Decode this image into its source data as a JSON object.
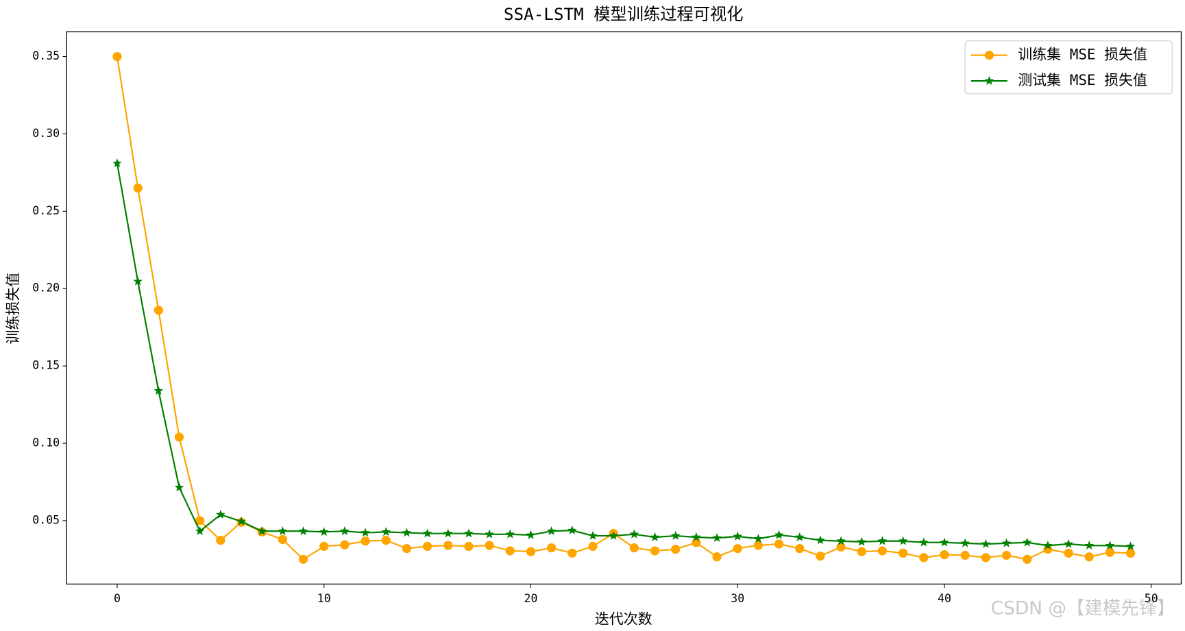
{
  "chart_data": {
    "type": "line",
    "title": "SSA-LSTM 模型训练过程可视化",
    "x_label": "迭代次数",
    "y_label": "训练损失值",
    "x": [
      0,
      1,
      2,
      3,
      4,
      5,
      6,
      7,
      8,
      9,
      10,
      11,
      12,
      13,
      14,
      15,
      16,
      17,
      18,
      19,
      20,
      21,
      22,
      23,
      24,
      25,
      26,
      27,
      28,
      29,
      30,
      31,
      32,
      33,
      34,
      35,
      36,
      37,
      38,
      39,
      40,
      41,
      42,
      43,
      44,
      45,
      46,
      47,
      48,
      49
    ],
    "series": [
      {
        "name": "训练集 MSE 损失值",
        "color": "#ffa500",
        "marker": "circle",
        "values": [
          0.35,
          0.265,
          0.186,
          0.104,
          0.05,
          0.0373,
          0.049,
          0.0427,
          0.0378,
          0.025,
          0.0334,
          0.0344,
          0.0368,
          0.0373,
          0.032,
          0.0334,
          0.034,
          0.0334,
          0.034,
          0.0305,
          0.03,
          0.0324,
          0.029,
          0.0334,
          0.0417,
          0.0324,
          0.0305,
          0.0315,
          0.0358,
          0.0266,
          0.032,
          0.034,
          0.0349,
          0.032,
          0.0271,
          0.033,
          0.03,
          0.0305,
          0.029,
          0.0261,
          0.028,
          0.0276,
          0.0261,
          0.0276,
          0.025,
          0.0315,
          0.029,
          0.0266,
          0.0295,
          0.029
        ]
      },
      {
        "name": "测试集 MSE 损失值",
        "color": "#008000",
        "marker": "star",
        "values": [
          0.281,
          0.2046,
          0.1339,
          0.0715,
          0.0432,
          0.0539,
          0.0495,
          0.0432,
          0.0432,
          0.0432,
          0.0427,
          0.0432,
          0.0422,
          0.0427,
          0.0422,
          0.0417,
          0.0417,
          0.0417,
          0.0412,
          0.0412,
          0.0407,
          0.0432,
          0.0437,
          0.0402,
          0.0402,
          0.0412,
          0.0393,
          0.0402,
          0.0393,
          0.0388,
          0.0398,
          0.0383,
          0.0407,
          0.0393,
          0.0373,
          0.0368,
          0.0363,
          0.0368,
          0.0368,
          0.0359,
          0.0359,
          0.0354,
          0.0349,
          0.0354,
          0.0359,
          0.0339,
          0.0349,
          0.0339,
          0.0339,
          0.0334
        ]
      }
    ],
    "xlim": [
      -2.45,
      51.45
    ],
    "xticks": [
      0,
      10,
      20,
      30,
      40,
      50
    ],
    "ylim": [
      0.009,
      0.366
    ],
    "yticks": [
      0.05,
      {
        "value": 0.1,
        "label": "0.10"
      },
      0.15,
      {
        "value": 0.2,
        "label": "0.20"
      },
      0.25,
      {
        "value": 0.3,
        "label": "0.30"
      },
      0.35
    ],
    "grid": false,
    "legend": "upper right",
    "watermark": "CSDN @【建模先锋】"
  }
}
